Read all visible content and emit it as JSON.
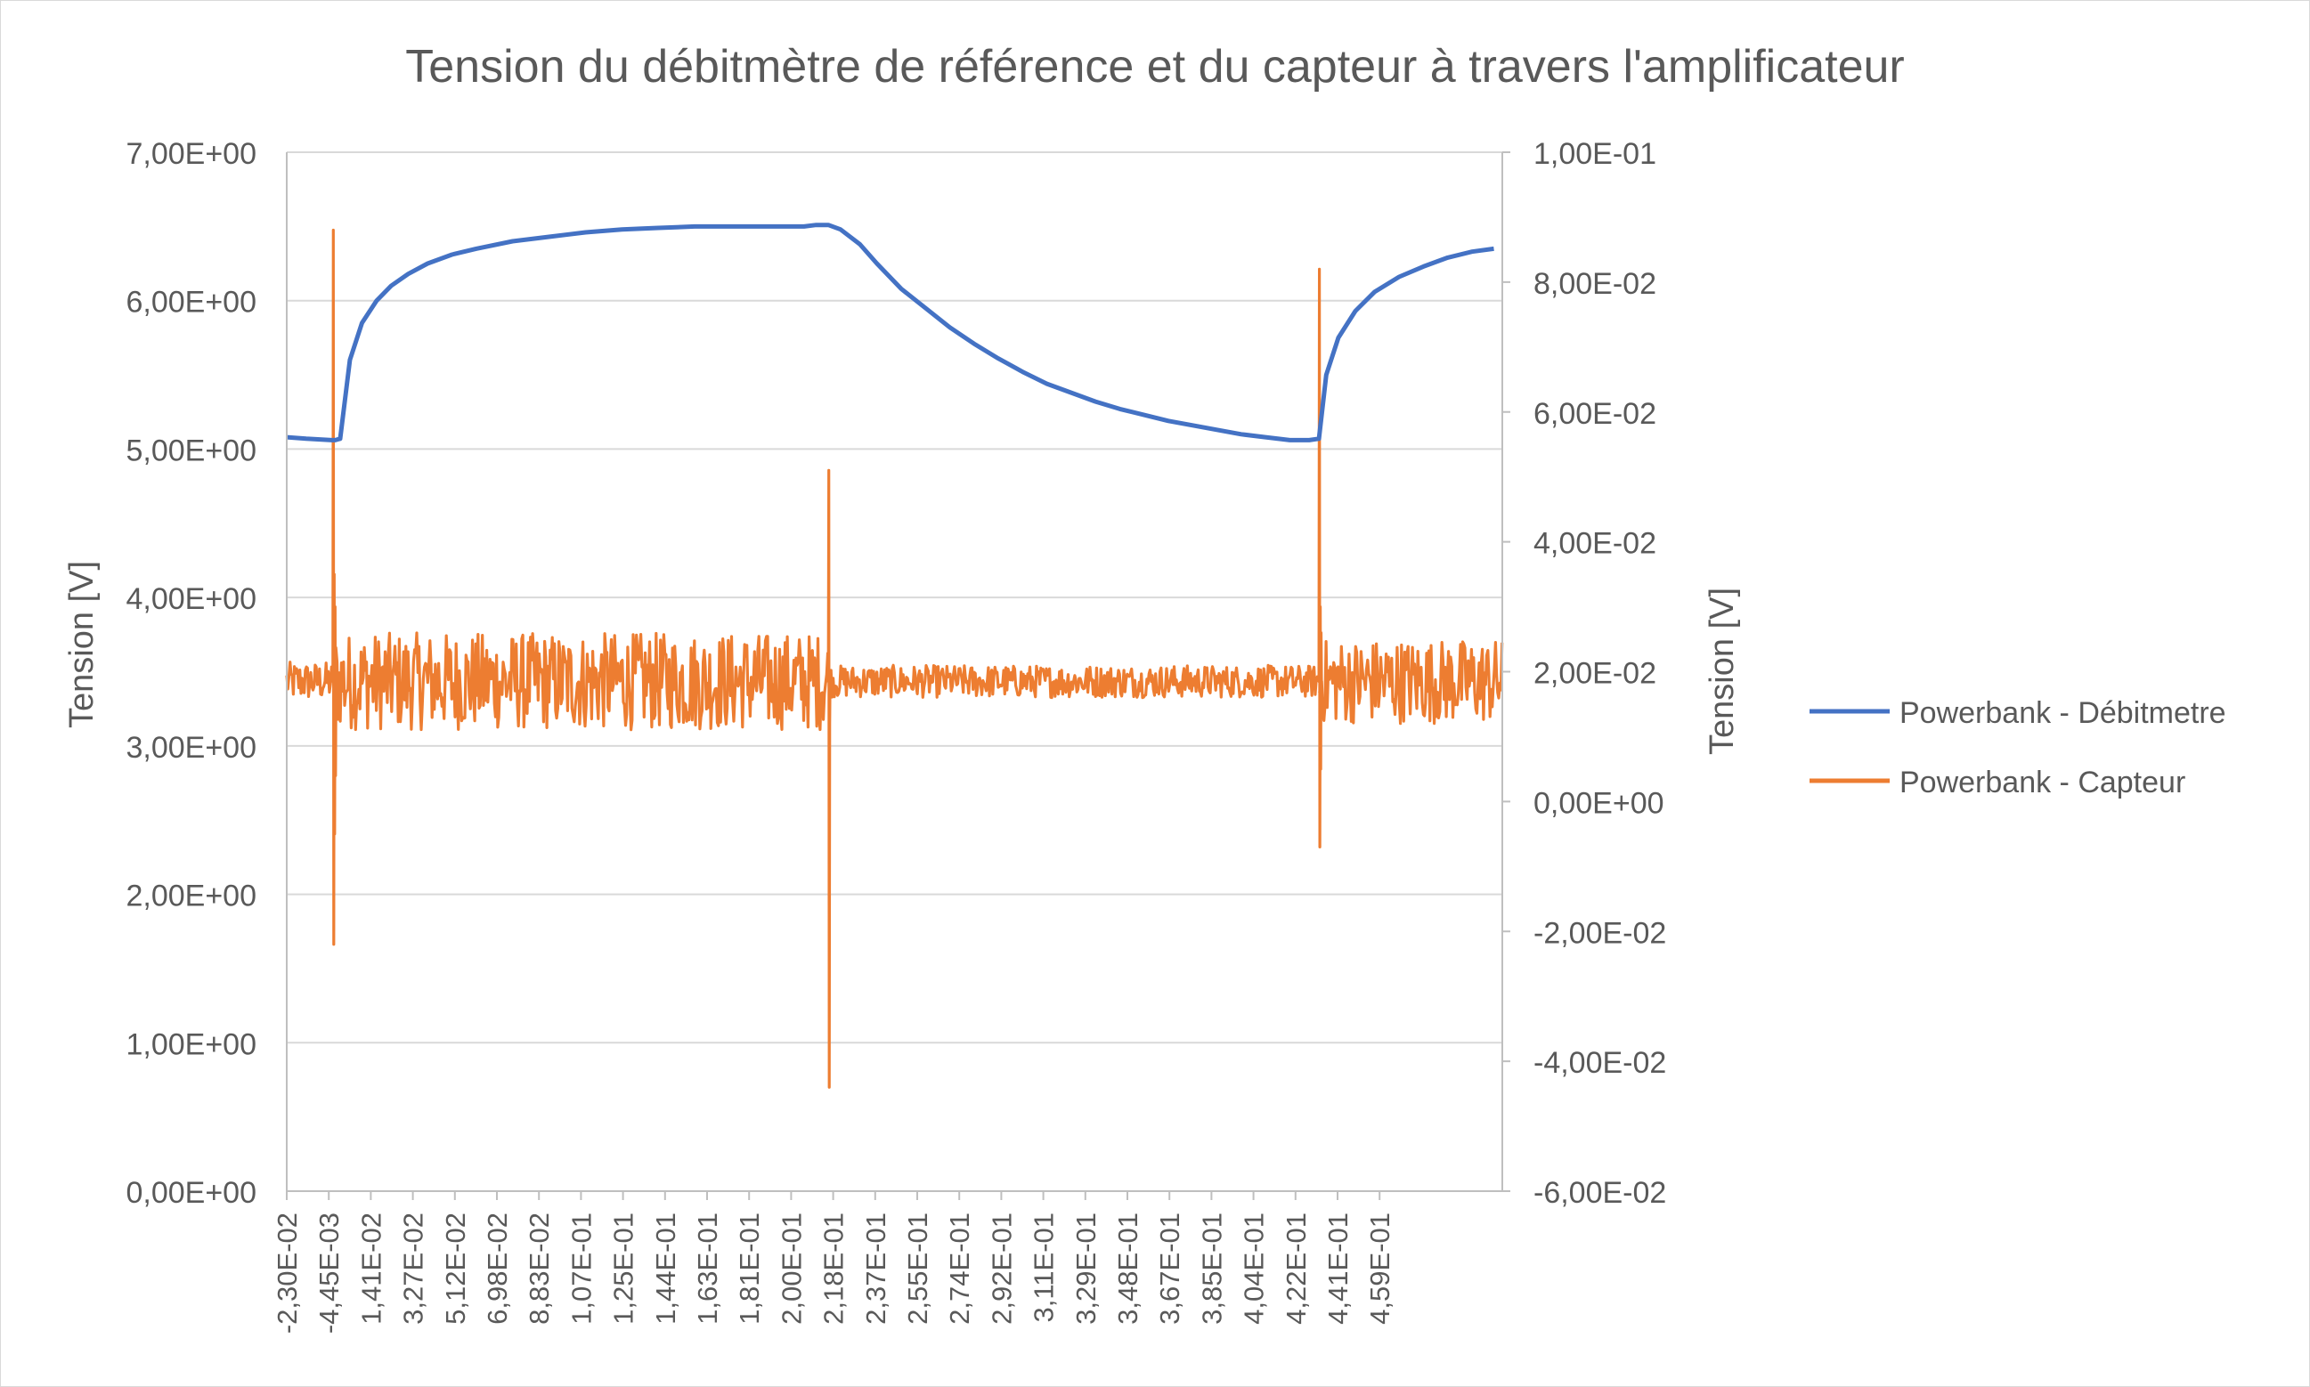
{
  "chart_data": {
    "type": "line",
    "title": "Tension du débitmètre de référence et du capteur à travers l'amplificateur",
    "ylabel": "Tension [V]",
    "y2label": "Tension [V]",
    "xlabel": "",
    "ylim": [
      0,
      7
    ],
    "y2lim": [
      -0.06,
      0.1
    ],
    "y_ticks": [
      "0,00E+00",
      "1,00E+00",
      "2,00E+00",
      "3,00E+00",
      "4,00E+00",
      "5,00E+00",
      "6,00E+00",
      "7,00E+00"
    ],
    "y2_ticks": [
      "-6,00E-02",
      "-4,00E-02",
      "-2,00E-02",
      "0,00E+00",
      "2,00E-02",
      "4,00E-02",
      "6,00E-02",
      "8,00E-02",
      "1,00E-01"
    ],
    "x_ticks": [
      "-2,30E-02",
      "-4,45E-03",
      "1,41E-02",
      "3,27E-02",
      "5,12E-02",
      "6,98E-02",
      "8,83E-02",
      "1,07E-01",
      "1,25E-01",
      "1,44E-01",
      "1,63E-01",
      "1,81E-01",
      "2,00E-01",
      "2,18E-01",
      "2,37E-01",
      "2,55E-01",
      "2,74E-01",
      "2,92E-01",
      "3,11E-01",
      "3,29E-01",
      "3,48E-01",
      "3,67E-01",
      "3,85E-01",
      "4,04E-01",
      "4,22E-01",
      "4,41E-01",
      "4,59E-01"
    ],
    "xlim": [
      -0.023,
      0.4775
    ],
    "grid": "horizontal",
    "legend_position": "right",
    "series": [
      {
        "name": "Powerbank - Débitmetre",
        "axis": "left",
        "color": "#4472C4",
        "x": [
          -0.023,
          -0.015,
          -0.0045,
          -0.003,
          -0.001,
          0.003,
          0.008,
          0.014,
          0.02,
          0.027,
          0.035,
          0.045,
          0.055,
          0.07,
          0.085,
          0.1,
          0.115,
          0.13,
          0.145,
          0.16,
          0.175,
          0.19,
          0.195,
          0.2,
          0.205,
          0.213,
          0.22,
          0.23,
          0.24,
          0.25,
          0.26,
          0.27,
          0.28,
          0.29,
          0.3,
          0.31,
          0.32,
          0.33,
          0.34,
          0.35,
          0.36,
          0.37,
          0.38,
          0.39,
          0.398,
          0.402,
          0.405,
          0.41,
          0.417,
          0.425,
          0.435,
          0.445,
          0.455,
          0.465,
          0.474
        ],
        "values": [
          5.08,
          5.07,
          5.06,
          5.06,
          5.07,
          5.6,
          5.85,
          6.0,
          6.1,
          6.18,
          6.25,
          6.31,
          6.35,
          6.4,
          6.43,
          6.46,
          6.48,
          6.49,
          6.5,
          6.5,
          6.5,
          6.5,
          6.51,
          6.51,
          6.48,
          6.38,
          6.25,
          6.08,
          5.95,
          5.82,
          5.71,
          5.61,
          5.52,
          5.44,
          5.38,
          5.32,
          5.27,
          5.23,
          5.19,
          5.16,
          5.13,
          5.1,
          5.08,
          5.06,
          5.06,
          5.07,
          5.5,
          5.75,
          5.93,
          6.06,
          6.16,
          6.23,
          6.29,
          6.33,
          6.35
        ]
      },
      {
        "name": "Powerbank - Capteur",
        "axis": "right",
        "color": "#ED7D31",
        "baseline": 0.0185,
        "noise_segments": [
          {
            "x0": -0.023,
            "x1": -0.003,
            "amplitude": 0.003
          },
          {
            "x0": -0.003,
            "x1": 0.2,
            "amplitude": 0.0075
          },
          {
            "x0": 0.2,
            "x1": 0.402,
            "amplitude": 0.0025
          },
          {
            "x0": 0.402,
            "x1": 0.4775,
            "amplitude": 0.0065
          }
        ],
        "spikes": [
          {
            "x": -0.004,
            "values": [
              0.0185,
              0.088,
              -0.022,
              0.035,
              -0.005,
              0.03,
              0.004,
              0.0185
            ]
          },
          {
            "x": 0.2,
            "values": [
              0.0185,
              0.051,
              -0.044,
              0.012,
              0.0185
            ]
          },
          {
            "x": 0.402,
            "values": [
              0.0185,
              0.082,
              -0.007,
              0.03,
              0.005,
              0.026,
              0.0185
            ]
          }
        ]
      }
    ]
  }
}
